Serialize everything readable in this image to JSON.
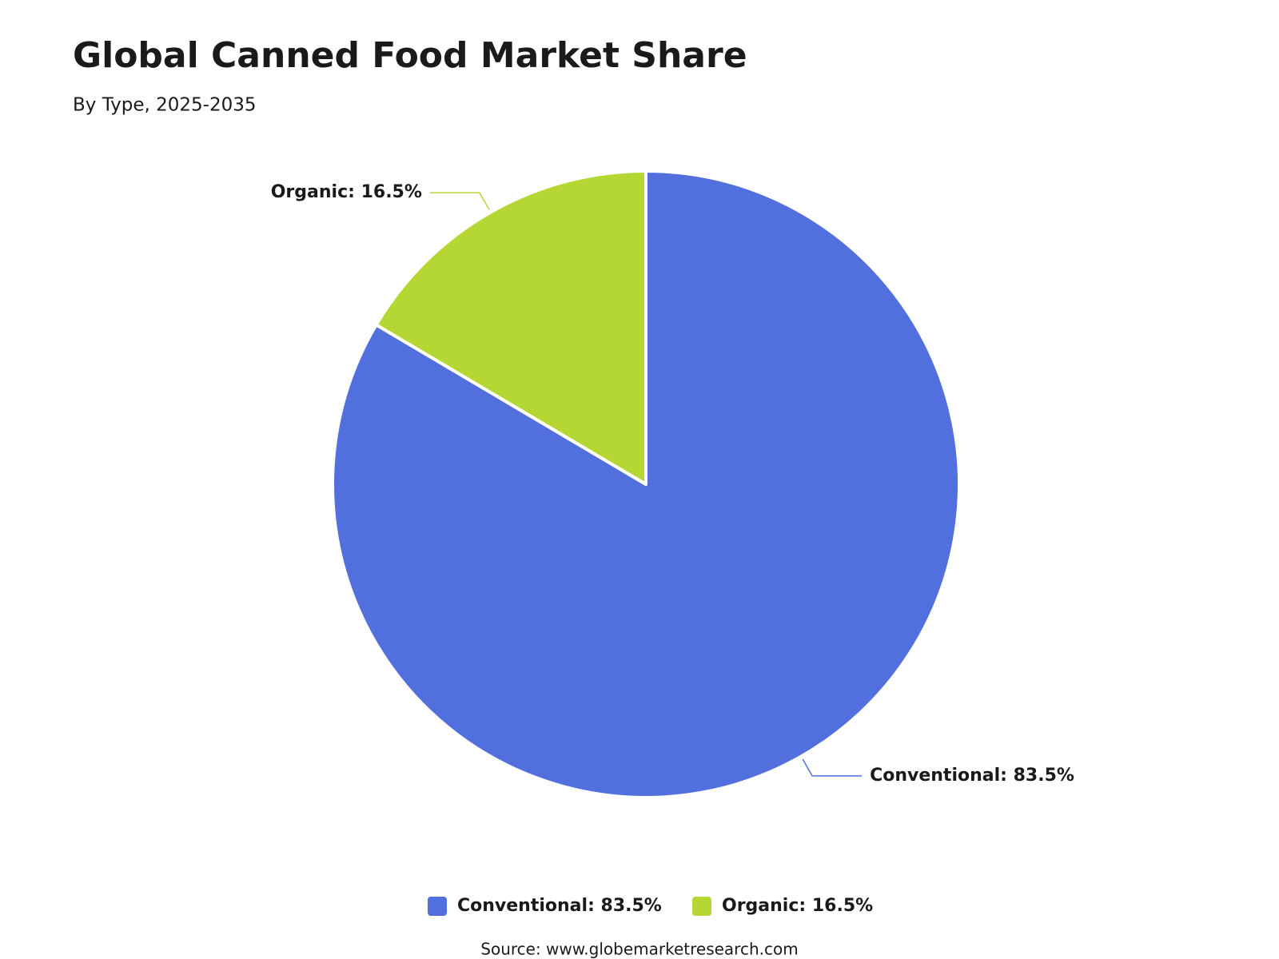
{
  "chart_data": {
    "type": "pie",
    "title": "Global Canned Food Market Share",
    "subtitle": "By Type, 2025-2035",
    "categories": [
      "Conventional",
      "Organic"
    ],
    "values": [
      83.5,
      16.5
    ],
    "value_labels": [
      "Conventional: 83.5%",
      "Organic: 16.5%"
    ],
    "colors": [
      "#5170de",
      "#b5d733"
    ],
    "source": "Source: www.globemarketresearch.com"
  }
}
